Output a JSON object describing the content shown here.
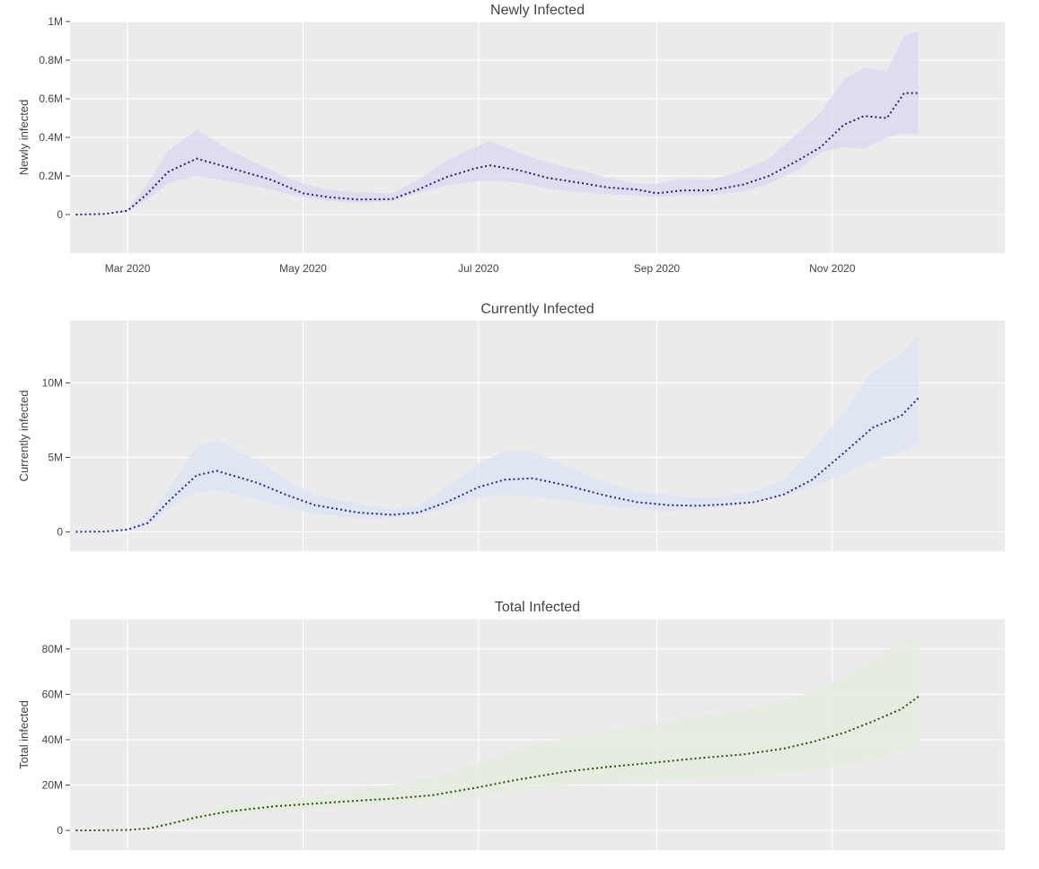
{
  "chart_data": [
    {
      "type": "line",
      "title": "Newly Infected",
      "ylabel": "Newly infected",
      "xlabel": "",
      "x_tick_labels": [
        "Mar 2020",
        "May 2020",
        "Jul 2020",
        "Sep 2020",
        "Nov 2020"
      ],
      "x_ticks": [
        "2020-03-01",
        "2020-05-01",
        "2020-07-01",
        "2020-09-01",
        "2020-11-01"
      ],
      "y_tick_labels": [
        "0",
        "0.2M",
        "0.4M",
        "0.6M",
        "0.8M",
        "1M"
      ],
      "y_ticks": [
        0,
        200000,
        400000,
        600000,
        800000,
        1000000
      ],
      "xlim": [
        "2020-02-10",
        "2020-12-31"
      ],
      "ylim": [
        -200000,
        1000000
      ],
      "grid": true,
      "band_color": "#d9d8f0",
      "line_color": "#2b1a78",
      "x": [
        "2020-02-12",
        "2020-02-22",
        "2020-03-01",
        "2020-03-08",
        "2020-03-15",
        "2020-03-25",
        "2020-04-06",
        "2020-04-20",
        "2020-05-01",
        "2020-05-10",
        "2020-05-20",
        "2020-06-01",
        "2020-06-10",
        "2020-06-20",
        "2020-06-30",
        "2020-07-05",
        "2020-07-15",
        "2020-07-25",
        "2020-08-05",
        "2020-08-15",
        "2020-08-25",
        "2020-09-01",
        "2020-09-10",
        "2020-09-20",
        "2020-10-01",
        "2020-10-10",
        "2020-10-20",
        "2020-10-28",
        "2020-11-05",
        "2020-11-12",
        "2020-11-20",
        "2020-11-26",
        "2020-12-01"
      ],
      "series": [
        {
          "role": "estimate",
          "values": [
            0,
            3000,
            20000,
            110000,
            220000,
            290000,
            240000,
            180000,
            110000,
            90000,
            78000,
            80000,
            130000,
            195000,
            240000,
            255000,
            230000,
            190000,
            165000,
            140000,
            130000,
            110000,
            125000,
            125000,
            155000,
            200000,
            280000,
            350000,
            465000,
            510000,
            500000,
            630000,
            630000
          ]
        },
        {
          "role": "lower",
          "values": [
            0,
            2000,
            15000,
            80000,
            160000,
            200000,
            170000,
            130000,
            90000,
            70000,
            60000,
            70000,
            110000,
            150000,
            170000,
            175000,
            165000,
            135000,
            115000,
            105000,
            100000,
            90000,
            100000,
            100000,
            120000,
            160000,
            230000,
            320000,
            350000,
            340000,
            400000,
            420000,
            420000
          ]
        },
        {
          "role": "upper",
          "values": [
            0,
            4000,
            25000,
            160000,
            330000,
            440000,
            330000,
            230000,
            160000,
            130000,
            115000,
            110000,
            180000,
            280000,
            350000,
            380000,
            320000,
            270000,
            230000,
            190000,
            160000,
            160000,
            185000,
            180000,
            230000,
            290000,
            420000,
            530000,
            700000,
            760000,
            740000,
            930000,
            950000
          ]
        }
      ]
    },
    {
      "type": "line",
      "title": "Currently Infected",
      "ylabel": "Currently infected",
      "xlabel": "",
      "y_tick_labels": [
        "0",
        "5M",
        "10M"
      ],
      "y_ticks": [
        0,
        5000000,
        10000000
      ],
      "xlim": [
        "2020-02-10",
        "2020-12-31"
      ],
      "ylim": [
        -1300000,
        14200000
      ],
      "grid": true,
      "band_color": "#dbe4f4",
      "line_color": "#1f2a8c",
      "x": [
        "2020-02-12",
        "2020-02-22",
        "2020-03-01",
        "2020-03-08",
        "2020-03-15",
        "2020-03-25",
        "2020-04-01",
        "2020-04-15",
        "2020-04-25",
        "2020-05-05",
        "2020-05-20",
        "2020-06-01",
        "2020-06-10",
        "2020-06-20",
        "2020-07-01",
        "2020-07-10",
        "2020-07-20",
        "2020-08-01",
        "2020-08-15",
        "2020-08-25",
        "2020-09-05",
        "2020-09-15",
        "2020-09-25",
        "2020-10-05",
        "2020-10-15",
        "2020-10-25",
        "2020-11-05",
        "2020-11-15",
        "2020-11-25",
        "2020-12-01"
      ],
      "series": [
        {
          "role": "estimate",
          "values": [
            0,
            20000,
            150000,
            600000,
            2000000,
            3800000,
            4100000,
            3300000,
            2500000,
            1800000,
            1300000,
            1150000,
            1300000,
            2000000,
            3000000,
            3500000,
            3600000,
            3100000,
            2400000,
            2000000,
            1800000,
            1750000,
            1850000,
            2000000,
            2500000,
            3500000,
            5300000,
            7000000,
            7800000,
            9000000
          ]
        },
        {
          "role": "lower",
          "values": [
            0,
            15000,
            100000,
            400000,
            1500000,
            2700000,
            2800000,
            2200000,
            1600000,
            1200000,
            900000,
            950000,
            1100000,
            1600000,
            2300000,
            2500000,
            2400000,
            2100000,
            1700000,
            1500000,
            1400000,
            1500000,
            1700000,
            2000000,
            2400000,
            3000000,
            3900000,
            4800000,
            5400000,
            6000000
          ]
        },
        {
          "role": "upper",
          "values": [
            0,
            25000,
            200000,
            900000,
            2800000,
            5800000,
            6200000,
            4800000,
            3500000,
            2500000,
            1900000,
            1500000,
            1800000,
            3000000,
            4600000,
            5400000,
            5400000,
            4400000,
            3300000,
            2700000,
            2500000,
            2300000,
            2400000,
            2700000,
            3500000,
            5500000,
            8000000,
            10800000,
            11900000,
            13300000
          ]
        }
      ]
    },
    {
      "type": "line",
      "title": "Total Infected",
      "ylabel": "Total infected",
      "xlabel": "",
      "y_tick_labels": [
        "0",
        "20M",
        "40M",
        "60M",
        "80M"
      ],
      "y_ticks": [
        0,
        20000000,
        40000000,
        60000000,
        80000000
      ],
      "xlim": [
        "2020-02-10",
        "2020-12-31"
      ],
      "ylim": [
        -8700000,
        93000000
      ],
      "grid": true,
      "band_color": "#e2eedb",
      "line_color": "#2f4a0e",
      "x": [
        "2020-02-12",
        "2020-02-22",
        "2020-03-01",
        "2020-03-08",
        "2020-03-15",
        "2020-03-25",
        "2020-04-05",
        "2020-04-20",
        "2020-05-01",
        "2020-05-15",
        "2020-06-01",
        "2020-06-15",
        "2020-07-01",
        "2020-07-15",
        "2020-08-01",
        "2020-08-15",
        "2020-09-01",
        "2020-09-15",
        "2020-10-01",
        "2020-10-15",
        "2020-10-25",
        "2020-11-05",
        "2020-11-15",
        "2020-11-25",
        "2020-12-01"
      ],
      "series": [
        {
          "role": "estimate",
          "values": [
            0,
            50000,
            200000,
            800000,
            2700000,
            5800000,
            8300000,
            10500000,
            11500000,
            12700000,
            14000000,
            15500000,
            19000000,
            22500000,
            26000000,
            28000000,
            30000000,
            31800000,
            33500000,
            36000000,
            39000000,
            43000000,
            48000000,
            53500000,
            59000000
          ]
        },
        {
          "role": "lower",
          "values": [
            0,
            40000,
            150000,
            600000,
            2000000,
            4300000,
            6500000,
            8500000,
            9500000,
            10500000,
            11500000,
            12500000,
            15000000,
            17500000,
            20000000,
            21000000,
            22000000,
            23000000,
            24000000,
            25500000,
            26500000,
            28500000,
            31500000,
            35000000,
            39000000
          ]
        },
        {
          "role": "upper",
          "values": [
            0,
            60000,
            250000,
            1100000,
            3500000,
            7500000,
            11000000,
            13000000,
            14500000,
            17000000,
            20000000,
            23000000,
            30000000,
            36000000,
            41000000,
            44000000,
            47000000,
            50000000,
            53500000,
            57000000,
            61000000,
            68000000,
            75000000,
            83000000,
            89000000
          ]
        }
      ]
    }
  ]
}
